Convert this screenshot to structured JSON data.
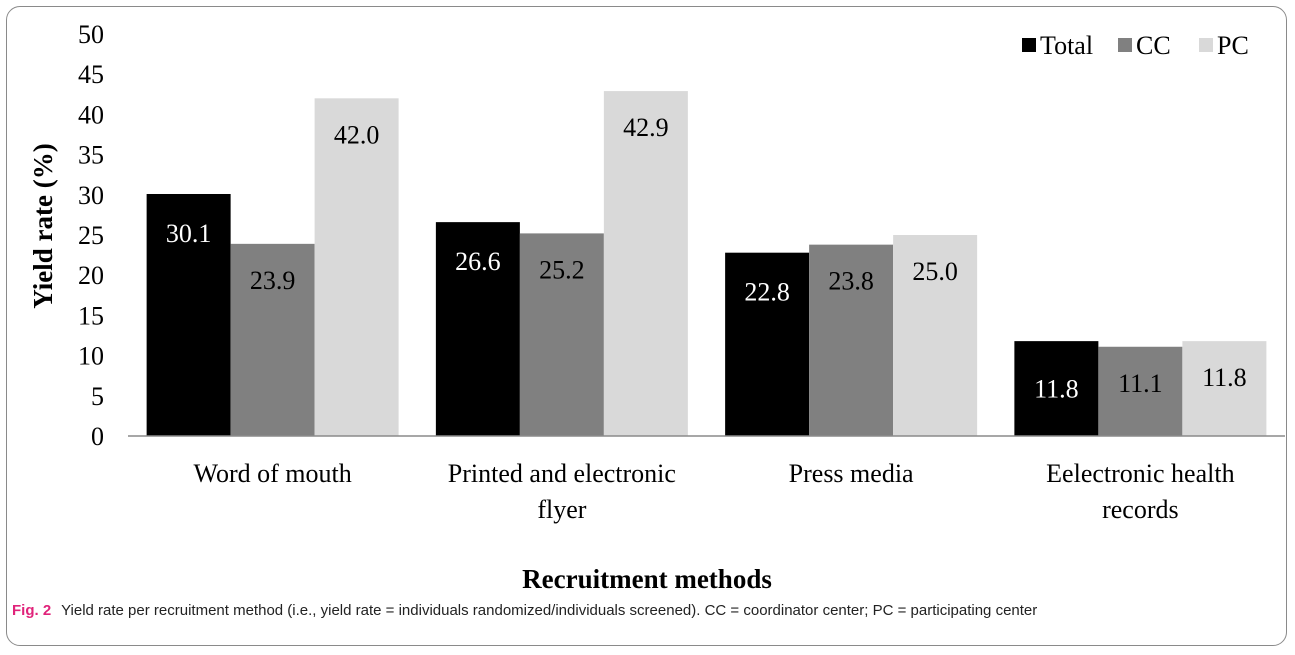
{
  "chart_data": {
    "type": "bar",
    "categories": [
      [
        "Word of mouth"
      ],
      [
        "Printed and electronic",
        "flyer"
      ],
      [
        "Press media"
      ],
      [
        "Eelectronic health",
        "records"
      ]
    ],
    "series": [
      {
        "name": "Total",
        "color": "#000000",
        "label_color": "#ffffff",
        "values": [
          30.1,
          26.6,
          22.8,
          11.8
        ],
        "labels": [
          "30.1",
          "26.6",
          "22.8",
          "11.8"
        ]
      },
      {
        "name": "CC",
        "color": "#808080",
        "label_color": "#000000",
        "values": [
          23.9,
          25.2,
          23.8,
          11.1
        ],
        "labels": [
          "23.9",
          "25.2",
          "23.8",
          "11.1"
        ]
      },
      {
        "name": "PC",
        "color": "#d9d9d9",
        "label_color": "#000000",
        "values": [
          42.0,
          42.9,
          25.0,
          11.8
        ],
        "labels": [
          "42.0",
          "42.9",
          "25.0",
          "11.8"
        ]
      }
    ],
    "ylim": [
      0,
      50
    ],
    "yticks": [
      "0",
      "5",
      "10",
      "15",
      "20",
      "25",
      "30",
      "35",
      "40",
      "45",
      "50"
    ],
    "ylabel": "Yield rate (%)",
    "xlabel": "Recruitment methods",
    "legend_position": "top-right",
    "grid": false
  },
  "caption": {
    "label": "Fig. 2",
    "text": "Yield rate per recruitment method (i.e., yield rate = individuals randomized/individuals screened). CC = coordinator center; PC = participating center"
  }
}
